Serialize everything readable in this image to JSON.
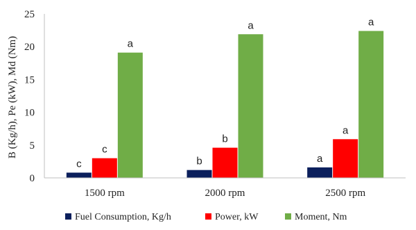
{
  "chart_data": {
    "type": "bar",
    "title": "",
    "xlabel": "",
    "ylabel": "B (Kg/h), Pe (kW), Md (Nm)",
    "ylim": [
      0,
      25
    ],
    "yticks": [
      0,
      5,
      10,
      15,
      20,
      25
    ],
    "grid": false,
    "legend_position": "bottom",
    "categories": [
      "1500 rpm",
      "2000 rpm",
      "2500 rpm"
    ],
    "series": [
      {
        "name": "Fuel Consumption, Kg/h",
        "color": "#0b1f5c",
        "values": [
          0.8,
          1.2,
          1.6
        ],
        "labels": [
          "c",
          "b",
          "a"
        ]
      },
      {
        "name": "Power, kW",
        "color": "#ff0000",
        "values": [
          3.0,
          4.6,
          5.9
        ],
        "labels": [
          "c",
          "b",
          "a"
        ]
      },
      {
        "name": "Moment, Nm",
        "color": "#70ad47",
        "values": [
          19.1,
          21.9,
          22.4
        ],
        "labels": [
          "a",
          "a",
          "a"
        ]
      }
    ]
  }
}
